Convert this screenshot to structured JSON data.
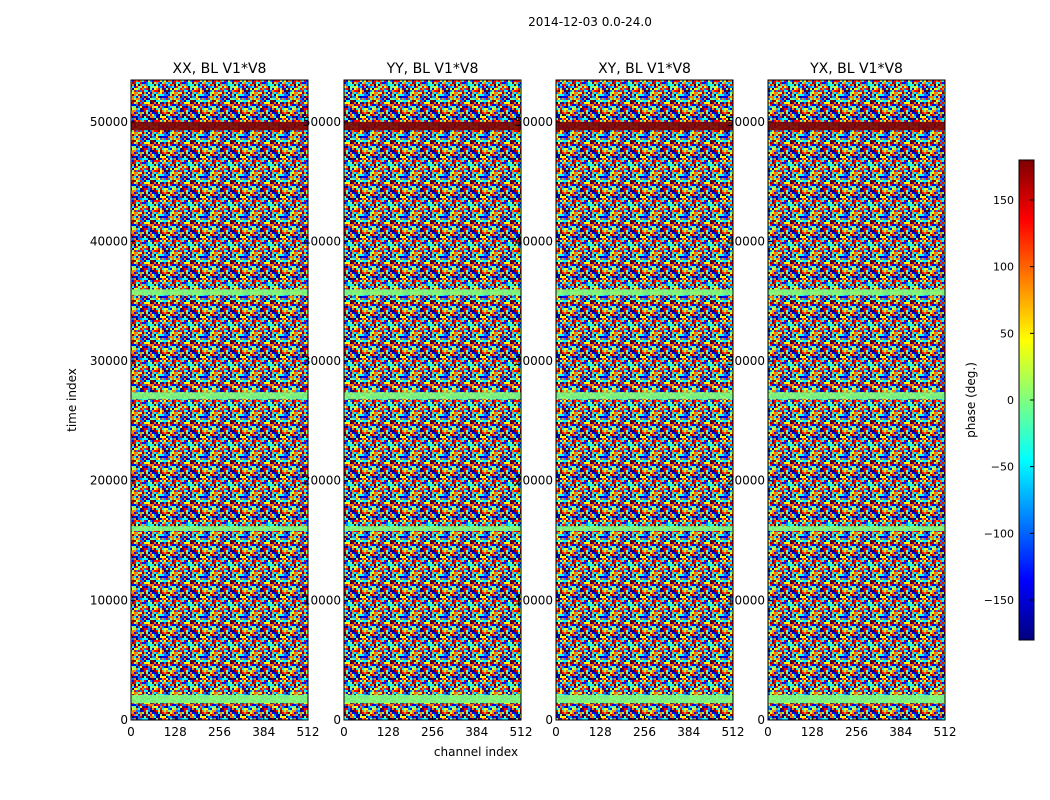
{
  "chart_data": {
    "type": "heatmap",
    "suptitle": "2014-12-03 0.0-24.0",
    "xlabel": "channel index",
    "ylabel": "time index",
    "xlim": [
      0,
      512
    ],
    "ylim": [
      0,
      53500
    ],
    "x_ticks": [
      "0",
      "128",
      "256",
      "384",
      "512"
    ],
    "y_ticks": [
      "0",
      "10000",
      "20000",
      "30000",
      "40000",
      "50000"
    ],
    "panels": [
      {
        "title": "XX, BL V1*V8",
        "pol": "XX"
      },
      {
        "title": "YY, BL V1*V8",
        "pol": "YY"
      },
      {
        "title": "XY, BL V1*V8",
        "pol": "XY"
      },
      {
        "title": "YX, BL V1*V8",
        "pol": "YX"
      }
    ],
    "colorbar": {
      "label": "phase (deg.)",
      "range": [
        -180,
        180
      ],
      "ticks": [
        "150",
        "100",
        "50",
        "0",
        "−50",
        "−100",
        "−150"
      ],
      "colormap": "jet",
      "colors": [
        "#00007f",
        "#0000ff",
        "#007fff",
        "#00ffff",
        "#7fff7f",
        "#ffff00",
        "#ff7f00",
        "#ff0000",
        "#7f0000"
      ]
    }
  }
}
